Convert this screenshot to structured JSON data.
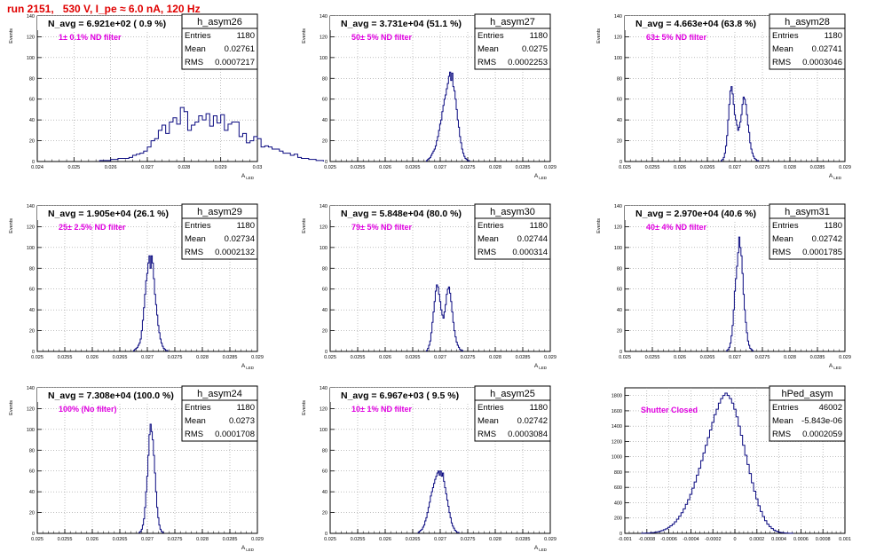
{
  "page": {
    "title": "run 2151,   530 V, I_pe ≈ 6.0 nA, 120 Hz"
  },
  "stats_labels": {
    "entries": "Entries",
    "mean": "Mean",
    "rms": "RMS"
  },
  "colors": {
    "histogram": "#0a0a80",
    "annotation": "#e000e0",
    "title": "#e00000",
    "grid": "#999999"
  },
  "chart_data": [
    {
      "type": "histogram",
      "name": "h_asym26",
      "title": "N_avg = 6.921e+02 ( 0.9 %)",
      "annotation": "1± 0.1% ND filter",
      "stats": {
        "entries": "1180",
        "mean": "0.02761",
        "rms": "0.0007217"
      },
      "xlim": [
        0.024,
        0.03
      ],
      "ylim": [
        0,
        140
      ],
      "xticks": [
        "0.024",
        "0.025",
        "0.026",
        "0.027",
        "0.028",
        "0.029",
        "0.03"
      ],
      "yticks": [
        "0",
        "20",
        "40",
        "60",
        "80",
        "100",
        "120",
        "140"
      ],
      "xlabel": "A_LED",
      "ylabel": "Events",
      "grid": true,
      "bins": {
        "start": 0.0257,
        "width": 0.0001,
        "values": [
          1,
          1,
          1,
          2,
          2,
          3,
          3,
          3,
          4,
          6,
          7,
          8,
          10,
          14,
          20,
          22,
          30,
          35,
          27,
          38,
          42,
          36,
          52,
          48,
          30,
          35,
          38,
          44,
          40,
          46,
          34,
          44,
          37,
          45,
          30,
          36,
          38,
          38,
          24,
          27,
          18,
          20,
          24,
          22,
          14,
          15,
          14,
          12,
          12,
          10,
          8,
          8,
          6,
          7,
          4,
          3,
          3,
          2,
          2,
          1,
          1
        ]
      }
    },
    {
      "type": "histogram",
      "name": "h_asym27",
      "title": "N_avg = 3.731e+04 (51.1 %)",
      "annotation": "50± 5% ND filter",
      "stats": {
        "entries": "1180",
        "mean": "0.0275",
        "rms": "0.0002253"
      },
      "xlim": [
        0.025,
        0.029
      ],
      "ylim": [
        0,
        140
      ],
      "xticks": [
        "0.025",
        "0.0255",
        "0.026",
        "0.0265",
        "0.027",
        "0.0275",
        "0.028",
        "0.0285",
        "0.029"
      ],
      "yticks": [
        "0",
        "20",
        "40",
        "60",
        "80",
        "100",
        "120",
        "140"
      ],
      "xlabel": "A_LED",
      "ylabel": "Events",
      "grid": true,
      "bins": {
        "start": 0.02675,
        "width": 2e-05,
        "values": [
          1,
          2,
          3,
          4,
          6,
          8,
          10,
          12,
          15,
          20,
          24,
          30,
          36,
          40,
          48,
          54,
          60,
          64,
          70,
          75,
          82,
          86,
          78,
          85,
          72,
          68,
          60,
          50,
          40,
          33,
          24,
          18,
          12,
          8,
          5,
          3,
          2,
          1,
          1
        ]
      }
    },
    {
      "type": "histogram",
      "name": "h_asym28",
      "title": "N_avg = 4.663e+04 (63.8 %)",
      "annotation": "63± 5% ND filter",
      "stats": {
        "entries": "1180",
        "mean": "0.02741",
        "rms": "0.0003046"
      },
      "xlim": [
        0.025,
        0.029
      ],
      "ylim": [
        0,
        140
      ],
      "xticks": [
        "0.025",
        "0.0255",
        "0.026",
        "0.0265",
        "0.027",
        "0.0275",
        "0.028",
        "0.0285",
        "0.029"
      ],
      "yticks": [
        "0",
        "20",
        "40",
        "60",
        "80",
        "100",
        "120",
        "140"
      ],
      "xlabel": "A_LED",
      "ylabel": "Events",
      "grid": true,
      "bins": {
        "start": 0.02675,
        "width": 2e-05,
        "values": [
          1,
          2,
          4,
          8,
          15,
          25,
          40,
          55,
          68,
          72,
          65,
          55,
          45,
          40,
          35,
          30,
          33,
          38,
          45,
          55,
          62,
          60,
          55,
          45,
          35,
          28,
          18,
          12,
          8,
          5,
          3,
          2,
          1,
          1
        ]
      }
    },
    {
      "type": "histogram",
      "name": "h_asym29",
      "title": "N_avg = 1.905e+04 (26.1 %)",
      "annotation": "25± 2.5% ND filter",
      "stats": {
        "entries": "1180",
        "mean": "0.02734",
        "rms": "0.0002132"
      },
      "xlim": [
        0.025,
        0.029
      ],
      "ylim": [
        0,
        140
      ],
      "xticks": [
        "0.025",
        "0.0255",
        "0.026",
        "0.0265",
        "0.027",
        "0.0275",
        "0.028",
        "0.0285",
        "0.029"
      ],
      "yticks": [
        "0",
        "20",
        "40",
        "60",
        "80",
        "100",
        "120",
        "140"
      ],
      "xlabel": "A_LED",
      "ylabel": "Events",
      "grid": true,
      "bins": {
        "start": 0.02675,
        "width": 2e-05,
        "values": [
          1,
          2,
          3,
          4,
          6,
          8,
          12,
          20,
          30,
          42,
          55,
          68,
          75,
          85,
          92,
          80,
          92,
          85,
          70,
          55,
          45,
          35,
          25,
          18,
          12,
          8,
          5,
          3,
          2,
          1,
          1
        ]
      }
    },
    {
      "type": "histogram",
      "name": "h_asym30",
      "title": "N_avg = 5.848e+04 (80.0 %)",
      "annotation": "79± 5% ND filter",
      "stats": {
        "entries": "1180",
        "mean": "0.02744",
        "rms": "0.000314"
      },
      "xlim": [
        0.025,
        0.029
      ],
      "ylim": [
        0,
        140
      ],
      "xticks": [
        "0.025",
        "0.0255",
        "0.026",
        "0.0265",
        "0.027",
        "0.0275",
        "0.028",
        "0.0285",
        "0.029"
      ],
      "yticks": [
        "0",
        "20",
        "40",
        "60",
        "80",
        "100",
        "120",
        "140"
      ],
      "xlabel": "A_LED",
      "ylabel": "Events",
      "grid": true,
      "bins": {
        "start": 0.02675,
        "width": 2e-05,
        "values": [
          1,
          3,
          6,
          10,
          18,
          28,
          38,
          48,
          58,
          64,
          62,
          55,
          48,
          40,
          35,
          32,
          38,
          45,
          55,
          60,
          62,
          56,
          48,
          38,
          28,
          20,
          14,
          9,
          6,
          4,
          2,
          1,
          1
        ]
      }
    },
    {
      "type": "histogram",
      "name": "h_asym31",
      "title": "N_avg = 2.970e+04 (40.6 %)",
      "annotation": "40± 4% ND filter",
      "stats": {
        "entries": "1180",
        "mean": "0.02742",
        "rms": "0.0001785"
      },
      "xlim": [
        0.025,
        0.029
      ],
      "ylim": [
        0,
        140
      ],
      "xticks": [
        "0.025",
        "0.0255",
        "0.026",
        "0.0265",
        "0.027",
        "0.0275",
        "0.028",
        "0.0285",
        "0.029"
      ],
      "yticks": [
        "0",
        "20",
        "40",
        "60",
        "80",
        "100",
        "120",
        "140"
      ],
      "xlabel": "A_LED",
      "ylabel": "Events",
      "grid": true,
      "bins": {
        "start": 0.02685,
        "width": 2e-05,
        "values": [
          1,
          2,
          4,
          8,
          15,
          25,
          40,
          58,
          70,
          82,
          95,
          110,
          100,
          92,
          75,
          55,
          40,
          28,
          18,
          10,
          6,
          3,
          2,
          1
        ]
      }
    },
    {
      "type": "histogram",
      "name": "h_asym24",
      "title": "N_avg = 7.308e+04 (100.0 %)",
      "annotation": "100% (No filter)",
      "stats": {
        "entries": "1180",
        "mean": "0.0273",
        "rms": "0.0001708"
      },
      "xlim": [
        0.025,
        0.029
      ],
      "ylim": [
        0,
        140
      ],
      "xticks": [
        "0.025",
        "0.0255",
        "0.026",
        "0.0265",
        "0.027",
        "0.0275",
        "0.028",
        "0.0285",
        "0.029"
      ],
      "yticks": [
        "0",
        "20",
        "40",
        "60",
        "80",
        "100",
        "120",
        "140"
      ],
      "xlabel": "A_LED",
      "ylabel": "Events",
      "grid": true,
      "bins": {
        "start": 0.02685,
        "width": 2e-05,
        "values": [
          1,
          2,
          4,
          8,
          14,
          25,
          40,
          55,
          75,
          95,
          105,
          98,
          90,
          75,
          58,
          40,
          25,
          15,
          8,
          4,
          2,
          1
        ]
      }
    },
    {
      "type": "histogram",
      "name": "h_asym25",
      "title": "N_avg = 6.967e+03 ( 9.5 %)",
      "annotation": "10± 1% ND filter",
      "stats": {
        "entries": "1180",
        "mean": "0.02742",
        "rms": "0.0003084"
      },
      "xlim": [
        0.025,
        0.029
      ],
      "ylim": [
        0,
        140
      ],
      "xticks": [
        "0.025",
        "0.0255",
        "0.026",
        "0.0265",
        "0.027",
        "0.0275",
        "0.028",
        "0.0285",
        "0.029"
      ],
      "yticks": [
        "0",
        "20",
        "40",
        "60",
        "80",
        "100",
        "120",
        "140"
      ],
      "xlabel": "A_LED",
      "ylabel": "Events",
      "grid": true,
      "bins": {
        "start": 0.0266,
        "width": 2e-05,
        "values": [
          1,
          2,
          3,
          4,
          6,
          8,
          12,
          15,
          20,
          25,
          30,
          36,
          40,
          44,
          48,
          52,
          55,
          58,
          60,
          56,
          60,
          55,
          58,
          50,
          44,
          38,
          32,
          26,
          20,
          15,
          10,
          7,
          5,
          3,
          2,
          1,
          1
        ]
      }
    },
    {
      "type": "histogram",
      "name": "hPed_asym",
      "title": "",
      "annotation": "Shutter Closed",
      "stats": {
        "entries": "46002",
        "mean": "-5.843e-06",
        "rms": "0.0002059"
      },
      "xlim": [
        -0.001,
        0.001
      ],
      "ylim": [
        0,
        1900
      ],
      "xticks": [
        "-0.001",
        "-0.0008",
        "-0.0006",
        "-0.0004",
        "-0.0002",
        "0",
        "0.0002",
        "0.0004",
        "0.0006",
        "0.0008",
        "0.001"
      ],
      "yticks": [
        "0",
        "200",
        "400",
        "600",
        "800",
        "1000",
        "1200",
        "1400",
        "1600",
        "1800"
      ],
      "xlabel": "",
      "ylabel": "",
      "grid": true,
      "bins": {
        "start": -0.00085,
        "width": 2e-05,
        "values": [
          2,
          3,
          4,
          5,
          8,
          10,
          14,
          20,
          28,
          36,
          48,
          60,
          78,
          98,
          120,
          150,
          185,
          225,
          270,
          320,
          380,
          440,
          510,
          590,
          670,
          760,
          850,
          950,
          1050,
          1150,
          1250,
          1350,
          1450,
          1550,
          1620,
          1700,
          1760,
          1800,
          1830,
          1800,
          1760,
          1700,
          1620,
          1520,
          1400,
          1280,
          1150,
          1020,
          900,
          780,
          660,
          550,
          450,
          360,
          285,
          220,
          165,
          120,
          88,
          62,
          42,
          28,
          18,
          12,
          8,
          5,
          3,
          2,
          1
        ]
      }
    }
  ]
}
